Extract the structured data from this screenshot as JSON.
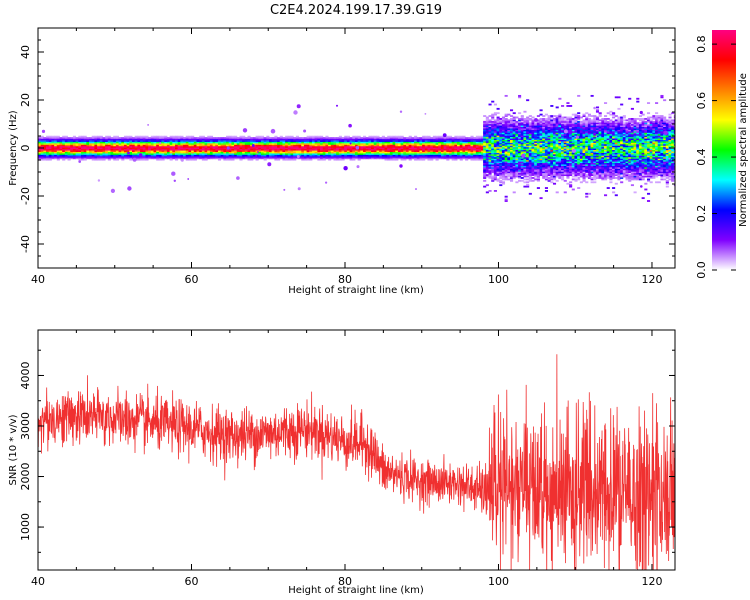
{
  "title": "C2E4.2024.199.17.39.G19",
  "chart_data": [
    {
      "type": "heatmap",
      "xlabel": "Height of straight line (km)",
      "ylabel": "Frequency (Hz)",
      "xlim": [
        40,
        123
      ],
      "ylim": [
        -50,
        50
      ],
      "xticks": [
        40,
        60,
        80,
        100,
        120
      ],
      "yticks": [
        -40,
        -20,
        0,
        20,
        40
      ],
      "colorbar": {
        "label": "Normalized spectral amplitude",
        "range": [
          0,
          0.85
        ],
        "ticks": [
          0.0,
          0.2,
          0.4,
          0.6,
          0.8
        ],
        "colors": [
          "#ffffff",
          "#8000ff",
          "#0000ff",
          "#00ffff",
          "#00ff00",
          "#ffff00",
          "#ff8000",
          "#ff0000",
          "#ff0080"
        ]
      },
      "bands": [
        {
          "x_range": [
            40,
            98
          ],
          "f_center": 0,
          "f_half_width": 3,
          "peak_amplitude": 0.85
        },
        {
          "x_range": [
            98,
            123
          ],
          "f_center": 0,
          "f_half_width": 10,
          "peak_amplitude": 0.45
        }
      ]
    },
    {
      "type": "line",
      "xlabel": "Height of straight line (km)",
      "ylabel": "SNR (10 * v/v)",
      "xlim": [
        40,
        123
      ],
      "ylim": [
        150,
        4900
      ],
      "xticks": [
        40,
        60,
        80,
        100,
        120
      ],
      "yticks": [
        1000,
        2000,
        3000,
        4000
      ],
      "color": "#f03030",
      "x": [
        40,
        45,
        50,
        55,
        60,
        65,
        70,
        75,
        80,
        83,
        85,
        90,
        95,
        98,
        100,
        105,
        110,
        115,
        120,
        123
      ],
      "y": [
        3100,
        3200,
        3150,
        3050,
        2950,
        2800,
        2850,
        2950,
        2700,
        2650,
        2100,
        1900,
        1850,
        1700,
        1750,
        1650,
        1600,
        1600,
        1550,
        1500
      ],
      "spread": [
        450,
        450,
        450,
        450,
        450,
        450,
        450,
        450,
        450,
        450,
        400,
        350,
        350,
        400,
        1300,
        1300,
        1300,
        1300,
        1300,
        1300
      ]
    }
  ]
}
